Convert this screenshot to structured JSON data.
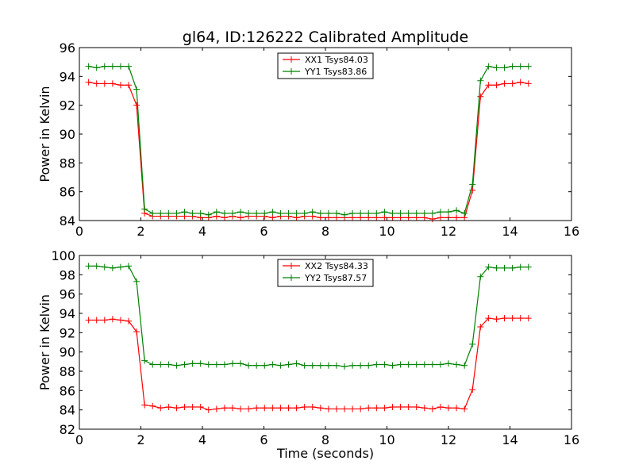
{
  "chart_data": [
    {
      "type": "line",
      "title": "gl64, ID:126222 Calibrated Amplitude",
      "xlabel": "",
      "ylabel": "Power in Kelvin",
      "xlim": [
        0,
        16
      ],
      "ylim": [
        84,
        96
      ],
      "xticks": [
        0,
        2,
        4,
        6,
        8,
        10,
        12,
        14,
        16
      ],
      "yticks": [
        84,
        86,
        88,
        90,
        92,
        94,
        96
      ],
      "grid": false,
      "legend": "upper-center",
      "x": [
        0.3,
        0.56,
        0.82,
        1.08,
        1.34,
        1.6,
        1.86,
        2.12,
        2.38,
        2.64,
        2.9,
        3.16,
        3.42,
        3.68,
        3.94,
        4.2,
        4.46,
        4.72,
        4.98,
        5.24,
        5.5,
        5.76,
        6.02,
        6.28,
        6.54,
        6.8,
        7.06,
        7.32,
        7.58,
        7.84,
        8.1,
        8.36,
        8.62,
        8.88,
        9.14,
        9.4,
        9.66,
        9.92,
        10.18,
        10.44,
        10.7,
        10.96,
        11.22,
        11.48,
        11.74,
        12.0,
        12.26,
        12.52,
        12.78,
        13.04,
        13.3,
        13.56,
        13.82,
        14.08,
        14.34,
        14.6
      ],
      "series": [
        {
          "name": "XX1 Tsys84.03",
          "color": "#ff0000",
          "values": [
            93.6,
            93.5,
            93.5,
            93.5,
            93.4,
            93.4,
            92.0,
            84.5,
            84.3,
            84.3,
            84.3,
            84.3,
            84.3,
            84.3,
            84.2,
            84.2,
            84.3,
            84.2,
            84.3,
            84.2,
            84.3,
            84.3,
            84.3,
            84.2,
            84.3,
            84.3,
            84.2,
            84.3,
            84.3,
            84.2,
            84.2,
            84.2,
            84.2,
            84.2,
            84.2,
            84.2,
            84.2,
            84.2,
            84.2,
            84.2,
            84.2,
            84.2,
            84.2,
            84.1,
            84.2,
            84.2,
            84.2,
            84.2,
            86.1,
            92.6,
            93.4,
            93.4,
            93.5,
            93.5,
            93.6,
            93.5
          ]
        },
        {
          "name": "YY1 Tsys83.86",
          "color": "#008000",
          "values": [
            94.7,
            94.6,
            94.7,
            94.7,
            94.7,
            94.7,
            93.1,
            84.8,
            84.5,
            84.5,
            84.5,
            84.5,
            84.6,
            84.5,
            84.5,
            84.4,
            84.6,
            84.5,
            84.5,
            84.6,
            84.5,
            84.5,
            84.5,
            84.6,
            84.5,
            84.5,
            84.5,
            84.5,
            84.6,
            84.5,
            84.5,
            84.5,
            84.4,
            84.5,
            84.5,
            84.5,
            84.5,
            84.6,
            84.5,
            84.5,
            84.5,
            84.5,
            84.5,
            84.5,
            84.6,
            84.6,
            84.7,
            84.5,
            86.5,
            93.7,
            94.7,
            94.6,
            94.6,
            94.7,
            94.7,
            94.7
          ]
        }
      ]
    },
    {
      "type": "line",
      "title": "",
      "xlabel": "Time (seconds)",
      "ylabel": "Power in Kelvin",
      "xlim": [
        0,
        16
      ],
      "ylim": [
        82,
        100
      ],
      "xticks": [
        0,
        2,
        4,
        6,
        8,
        10,
        12,
        14,
        16
      ],
      "yticks": [
        82,
        84,
        86,
        88,
        90,
        92,
        94,
        96,
        98,
        100
      ],
      "grid": false,
      "legend": "upper-center",
      "x": [
        0.3,
        0.56,
        0.82,
        1.08,
        1.34,
        1.6,
        1.86,
        2.12,
        2.38,
        2.64,
        2.9,
        3.16,
        3.42,
        3.68,
        3.94,
        4.2,
        4.46,
        4.72,
        4.98,
        5.24,
        5.5,
        5.76,
        6.02,
        6.28,
        6.54,
        6.8,
        7.06,
        7.32,
        7.58,
        7.84,
        8.1,
        8.36,
        8.62,
        8.88,
        9.14,
        9.4,
        9.66,
        9.92,
        10.18,
        10.44,
        10.7,
        10.96,
        11.22,
        11.48,
        11.74,
        12.0,
        12.26,
        12.52,
        12.78,
        13.04,
        13.3,
        13.56,
        13.82,
        14.08,
        14.34,
        14.6
      ],
      "series": [
        {
          "name": "XX2 Tsys84.33",
          "color": "#ff0000",
          "values": [
            93.3,
            93.3,
            93.3,
            93.4,
            93.3,
            93.2,
            92.1,
            84.5,
            84.4,
            84.2,
            84.3,
            84.2,
            84.3,
            84.3,
            84.3,
            84.0,
            84.1,
            84.2,
            84.2,
            84.1,
            84.1,
            84.2,
            84.2,
            84.2,
            84.2,
            84.2,
            84.2,
            84.3,
            84.3,
            84.2,
            84.1,
            84.1,
            84.1,
            84.1,
            84.1,
            84.2,
            84.2,
            84.2,
            84.3,
            84.3,
            84.3,
            84.3,
            84.2,
            84.1,
            84.3,
            84.2,
            84.2,
            84.1,
            86.1,
            92.6,
            93.5,
            93.4,
            93.5,
            93.5,
            93.5,
            93.5
          ]
        },
        {
          "name": "YY2 Tsys87.57",
          "color": "#008000",
          "values": [
            98.9,
            98.9,
            98.8,
            98.7,
            98.8,
            98.9,
            97.3,
            89.1,
            88.7,
            88.7,
            88.7,
            88.6,
            88.7,
            88.8,
            88.8,
            88.7,
            88.7,
            88.7,
            88.8,
            88.8,
            88.6,
            88.6,
            88.6,
            88.7,
            88.6,
            88.7,
            88.8,
            88.6,
            88.6,
            88.6,
            88.6,
            88.6,
            88.5,
            88.6,
            88.6,
            88.6,
            88.7,
            88.7,
            88.6,
            88.7,
            88.7,
            88.7,
            88.7,
            88.7,
            88.7,
            88.8,
            88.7,
            88.6,
            90.8,
            97.8,
            98.8,
            98.7,
            98.7,
            98.7,
            98.8,
            98.8
          ]
        }
      ]
    }
  ]
}
